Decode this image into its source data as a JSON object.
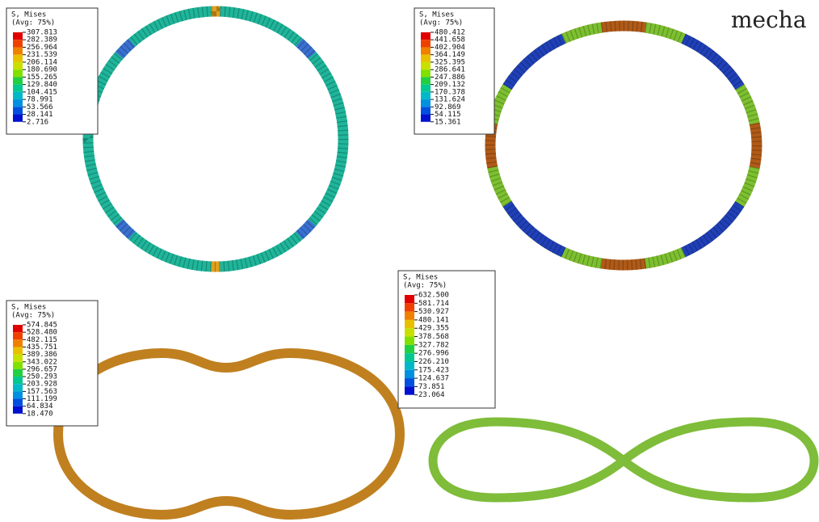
{
  "header": {
    "fragment": "mecha"
  },
  "panels": [
    {
      "legend": {
        "title": "S, Mises",
        "subtitle": "(Avg: 75%)",
        "values": [
          "307.813",
          "282.389",
          "256.964",
          "231.539",
          "206.114",
          "180.690",
          "155.265",
          "129.840",
          "104.415",
          "78.991",
          "53.566",
          "28.141",
          "2.716"
        ]
      }
    },
    {
      "legend": {
        "title": "S, Mises",
        "subtitle": "(Avg: 75%)",
        "values": [
          "480.412",
          "441.658",
          "402.904",
          "364.149",
          "325.395",
          "286.641",
          "247.886",
          "209.132",
          "170.378",
          "131.624",
          "92.869",
          "54.115",
          "15.361"
        ]
      }
    },
    {
      "legend": {
        "title": "S, Mises",
        "subtitle": "(Avg: 75%)",
        "values": [
          "574.845",
          "528.480",
          "482.115",
          "435.751",
          "389.386",
          "343.022",
          "296.657",
          "250.293",
          "203.928",
          "157.563",
          "111.199",
          "64.834",
          "18.470"
        ]
      }
    },
    {
      "legend": {
        "title": "S, Mises",
        "subtitle": "(Avg: 75%)",
        "values": [
          "632.500",
          "581.714",
          "530.927",
          "480.141",
          "429.355",
          "378.568",
          "327.782",
          "276.996",
          "226.210",
          "175.423",
          "124.637",
          "73.851",
          "23.064"
        ]
      }
    }
  ]
}
